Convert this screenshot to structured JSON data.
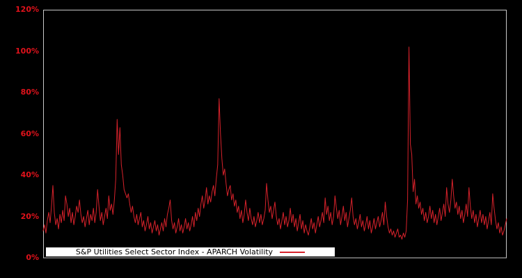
{
  "chart_data": {
    "type": "line",
    "title": "",
    "xlabel": "",
    "ylabel": "",
    "ylim": [
      0,
      120
    ],
    "grid": false,
    "legend": {
      "label": "S&P Utilities Select Sector Index - APARCH Volatility",
      "position": "bottom-inside",
      "marker": "red-line"
    },
    "y_ticks": [
      {
        "label": "120%",
        "value": 120
      },
      {
        "label": "100%",
        "value": 100
      },
      {
        "label": "80%",
        "value": 80
      },
      {
        "label": "60%",
        "value": 60
      },
      {
        "label": "40%",
        "value": 40
      },
      {
        "label": "20%",
        "value": 20
      },
      {
        "label": "0%",
        "value": 0
      }
    ],
    "x_tick_labels": [],
    "colors": {
      "background": "#000000",
      "plot_background": "#000000",
      "plot_border": "#c9c9c9",
      "series": "#d7222b",
      "tick_labels": "#e0121b",
      "legend_background": "#ffffff",
      "legend_text": "#000000"
    },
    "series": [
      {
        "name": "S&P Utilities Select Sector Index - APARCH Volatility",
        "unit": "percent",
        "values": [
          13,
          16,
          12,
          18,
          22,
          17,
          25,
          35,
          22,
          16,
          19,
          14,
          21,
          17,
          23,
          18,
          30,
          26,
          20,
          24,
          17,
          22,
          16,
          20,
          25,
          22,
          28,
          21,
          17,
          20,
          15,
          19,
          23,
          16,
          21,
          18,
          24,
          17,
          22,
          33,
          25,
          18,
          22,
          16,
          20,
          24,
          19,
          30,
          23,
          26,
          21,
          28,
          38,
          67,
          50,
          63,
          45,
          40,
          33,
          31,
          29,
          31,
          26,
          22,
          25,
          20,
          17,
          21,
          16,
          19,
          22,
          15,
          18,
          13,
          16,
          20,
          14,
          17,
          12,
          15,
          18,
          13,
          16,
          11,
          14,
          17,
          13,
          19,
          15,
          21,
          24,
          28,
          18,
          14,
          17,
          12,
          15,
          19,
          13,
          16,
          12,
          15,
          19,
          14,
          17,
          13,
          16,
          20,
          15,
          22,
          18,
          24,
          20,
          26,
          30,
          24,
          28,
          34,
          26,
          30,
          27,
          32,
          35,
          30,
          38,
          45,
          77,
          60,
          48,
          40,
          43,
          36,
          30,
          33,
          35,
          28,
          31,
          25,
          28,
          22,
          25,
          19,
          23,
          17,
          21,
          28,
          22,
          18,
          24,
          19,
          16,
          20,
          15,
          18,
          22,
          17,
          21,
          16,
          19,
          23,
          36,
          28,
          22,
          25,
          19,
          23,
          27,
          20,
          16,
          19,
          14,
          18,
          22,
          16,
          20,
          15,
          18,
          24,
          17,
          21,
          15,
          19,
          13,
          17,
          21,
          14,
          18,
          12,
          16,
          13,
          11,
          15,
          19,
          14,
          17,
          12,
          16,
          20,
          15,
          18,
          22,
          17,
          29,
          21,
          25,
          18,
          22,
          16,
          20,
          30,
          24,
          19,
          23,
          16,
          20,
          25,
          18,
          22,
          15,
          19,
          23,
          29,
          20,
          16,
          19,
          14,
          17,
          21,
          15,
          18,
          13,
          16,
          20,
          14,
          18,
          12,
          15,
          19,
          14,
          17,
          20,
          15,
          18,
          22,
          16,
          27,
          20,
          15,
          12,
          14,
          11,
          13,
          10,
          12,
          14,
          10,
          11,
          9,
          12,
          10,
          13,
          28,
          102,
          55,
          50,
          32,
          38,
          26,
          30,
          24,
          27,
          21,
          24,
          18,
          22,
          17,
          20,
          25,
          19,
          23,
          17,
          21,
          16,
          20,
          24,
          18,
          22,
          26,
          20,
          34,
          26,
          22,
          28,
          38,
          30,
          24,
          27,
          21,
          25,
          19,
          23,
          17,
          21,
          26,
          20,
          34,
          25,
          19,
          23,
          17,
          21,
          15,
          19,
          23,
          17,
          21,
          16,
          20,
          14,
          18,
          22,
          16,
          31,
          24,
          18,
          14,
          17,
          12,
          15,
          11,
          13,
          16,
          19
        ]
      }
    ]
  }
}
